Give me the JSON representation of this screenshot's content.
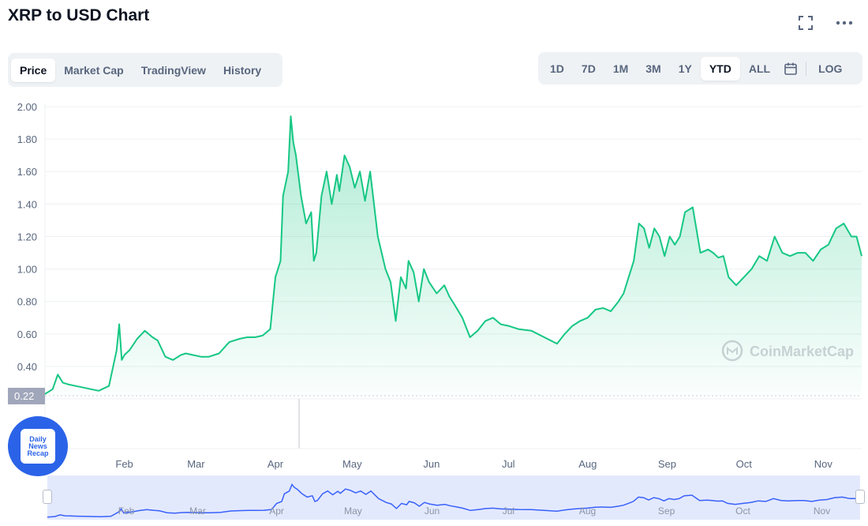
{
  "header": {
    "title": "XRP to USD Chart",
    "fullscreen_icon": "fullscreen-icon",
    "more_icon": "more-icon"
  },
  "view_tabs": [
    {
      "label": "Price",
      "active": true
    },
    {
      "label": "Market Cap",
      "active": false
    },
    {
      "label": "TradingView",
      "active": false
    },
    {
      "label": "History",
      "active": false
    }
  ],
  "range_tabs": [
    {
      "label": "1D",
      "active": false
    },
    {
      "label": "7D",
      "active": false
    },
    {
      "label": "1M",
      "active": false
    },
    {
      "label": "3M",
      "active": false
    },
    {
      "label": "1Y",
      "active": false
    },
    {
      "label": "YTD",
      "active": true
    },
    {
      "label": "ALL",
      "active": false
    }
  ],
  "calendar_icon": "calendar-icon",
  "log_label": "LOG",
  "watermark": "CoinMarketCap",
  "badge": {
    "lines": [
      "Daily",
      "News",
      "Recap"
    ]
  },
  "colors": {
    "line": "#16c784",
    "navigator_line": "#3861fb",
    "navigator_fill": "#e3e9fd",
    "price_tag": "#a1a7bb"
  },
  "chart_data": {
    "type": "area",
    "y_ticks": [
      "2.00",
      "1.80",
      "1.60",
      "1.40",
      "1.20",
      "1.00",
      "0.80",
      "0.60",
      "0.40"
    ],
    "ylim": [
      0.22,
      2.0
    ],
    "xlim": [
      0,
      319
    ],
    "current_price_label": "0.22",
    "x_ticks": [
      {
        "label": "Feb",
        "day": 31
      },
      {
        "label": "Mar",
        "day": 59
      },
      {
        "label": "Apr",
        "day": 90
      },
      {
        "label": "May",
        "day": 120
      },
      {
        "label": "Jun",
        "day": 151
      },
      {
        "label": "Jul",
        "day": 181
      },
      {
        "label": "Aug",
        "day": 212
      },
      {
        "label": "Sep",
        "day": 243
      },
      {
        "label": "Oct",
        "day": 273
      },
      {
        "label": "Nov",
        "day": 304
      }
    ],
    "x": [
      0,
      3,
      5,
      7,
      9,
      12,
      15,
      18,
      21,
      25,
      28,
      29,
      30,
      31,
      33,
      36,
      39,
      42,
      44,
      47,
      50,
      53,
      55,
      58,
      61,
      64,
      68,
      72,
      76,
      79,
      82,
      85,
      88,
      90,
      92,
      93,
      95,
      96,
      97,
      98,
      100,
      102,
      104,
      105,
      106,
      108,
      110,
      112,
      114,
      115,
      117,
      119,
      121,
      123,
      125,
      127,
      130,
      133,
      135,
      137,
      139,
      141,
      142,
      144,
      146,
      148,
      150,
      153,
      156,
      158,
      160,
      163,
      166,
      169,
      172,
      175,
      178,
      181,
      185,
      190,
      195,
      200,
      203,
      206,
      209,
      212,
      215,
      218,
      221,
      224,
      226,
      228,
      230,
      232,
      234,
      236,
      238,
      240,
      242,
      244,
      246,
      248,
      250,
      253,
      256,
      259,
      261,
      263,
      265,
      267,
      270,
      273,
      276,
      279,
      282,
      285,
      288,
      291,
      294,
      297,
      300,
      303,
      306,
      309,
      312,
      315,
      317,
      319
    ],
    "y": [
      0.23,
      0.26,
      0.35,
      0.3,
      0.29,
      0.28,
      0.27,
      0.26,
      0.25,
      0.28,
      0.5,
      0.66,
      0.44,
      0.47,
      0.5,
      0.57,
      0.62,
      0.58,
      0.56,
      0.46,
      0.44,
      0.47,
      0.48,
      0.47,
      0.46,
      0.46,
      0.48,
      0.55,
      0.57,
      0.58,
      0.58,
      0.59,
      0.63,
      0.95,
      1.05,
      1.45,
      1.6,
      1.94,
      1.78,
      1.7,
      1.45,
      1.28,
      1.35,
      1.05,
      1.1,
      1.45,
      1.6,
      1.4,
      1.58,
      1.48,
      1.7,
      1.63,
      1.5,
      1.6,
      1.42,
      1.6,
      1.2,
      1.0,
      0.92,
      0.68,
      0.95,
      0.88,
      1.05,
      0.98,
      0.8,
      1.0,
      0.92,
      0.85,
      0.9,
      0.83,
      0.78,
      0.7,
      0.58,
      0.62,
      0.68,
      0.7,
      0.66,
      0.65,
      0.63,
      0.62,
      0.58,
      0.54,
      0.6,
      0.65,
      0.68,
      0.7,
      0.75,
      0.76,
      0.74,
      0.8,
      0.85,
      0.95,
      1.05,
      1.28,
      1.25,
      1.13,
      1.25,
      1.2,
      1.08,
      1.2,
      1.15,
      1.2,
      1.35,
      1.38,
      1.1,
      1.12,
      1.1,
      1.07,
      1.08,
      0.95,
      0.9,
      0.95,
      1.0,
      1.08,
      1.05,
      1.2,
      1.1,
      1.08,
      1.1,
      1.1,
      1.05,
      1.12,
      1.15,
      1.25,
      1.28,
      1.2,
      1.2,
      1.08
    ]
  },
  "navigator": {
    "x_ticks": [
      "Feb",
      "Mar",
      "Apr",
      "May",
      "Jun",
      "Jul",
      "Aug",
      "Sep",
      "Oct",
      "Nov"
    ]
  }
}
